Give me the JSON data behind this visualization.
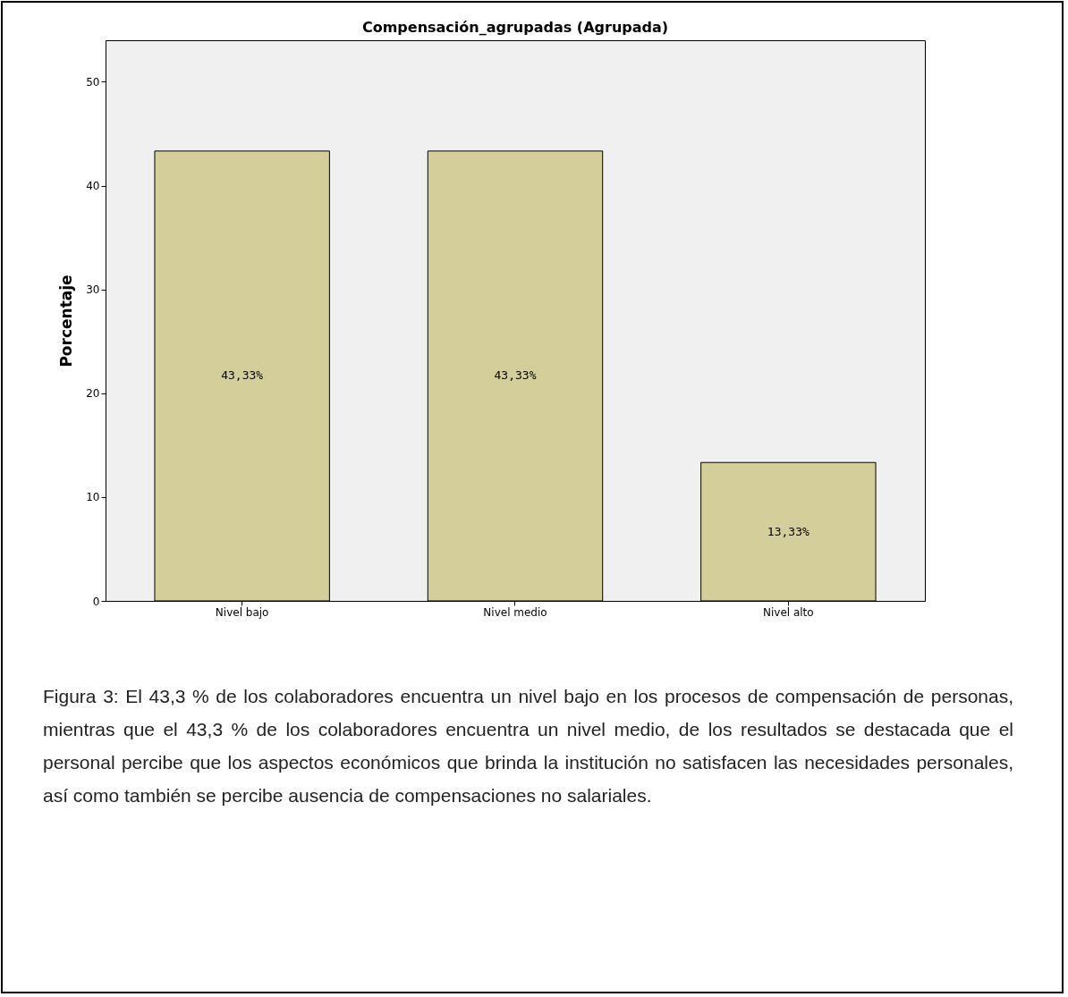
{
  "chart_data": {
    "type": "bar",
    "title": "Compensación_agrupadas (Agrupada)",
    "ylabel": "Porcentaje",
    "categories": [
      "Nivel bajo",
      "Nivel medio",
      "Nivel alto"
    ],
    "values": [
      43.33,
      43.33,
      13.33
    ],
    "value_labels": [
      "43,33%",
      "43,33%",
      "13,33%"
    ],
    "color": "#d3ce9a",
    "ylim": [
      0,
      54
    ],
    "yticks": [
      0,
      10,
      20,
      30,
      40,
      50
    ],
    "grid": false,
    "annotations": [
      "Figura 3: El 43,3 % de los colaboradores encuentra un nivel bajo en los procesos de compensación de personas, mientras que el 43,3 % de los colaboradores encuentra un nivel medio, de los resultados se destacada que el personal percibe que los aspectos económicos que brinda la institución no satisfacen las necesidades personales, así como también se percibe ausencia de compensaciones no salariales."
    ]
  }
}
